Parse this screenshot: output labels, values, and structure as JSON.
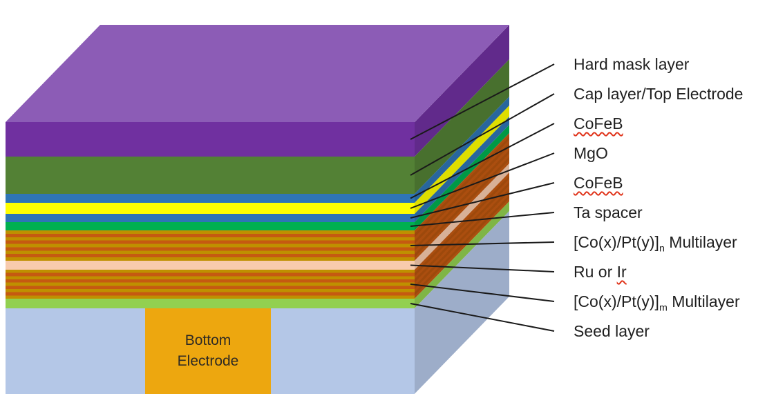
{
  "figure": {
    "background": "#FFFFFF",
    "label_text_color": "#1F1F1F",
    "leader_line_color": "#1A1A1A",
    "misspell_underline_color": "#E0341B",
    "top_face_color": "#8C5CB6"
  },
  "stack": {
    "layers": [
      {
        "name": "hard-mask-layer",
        "color": "#7030A0",
        "label": {
          "text": "Hard mask layer",
          "parts": [
            {
              "t": "Hard mask layer"
            }
          ]
        }
      },
      {
        "name": "cap-layer-top-electrode",
        "color": "#538135",
        "label": {
          "text": "Cap layer/Top Electrode",
          "parts": [
            {
              "t": "Cap layer/Top Electrode"
            }
          ]
        }
      },
      {
        "name": "cofeb-top",
        "color": "#2E75B6",
        "label": {
          "text": "CoFeB",
          "parts": [
            {
              "t": "CoFeB",
              "misspelled": true
            }
          ]
        }
      },
      {
        "name": "mgo",
        "color": "#FFFF00",
        "label": {
          "text": "MgO",
          "parts": [
            {
              "t": "MgO"
            }
          ]
        }
      },
      {
        "name": "cofeb-bottom",
        "color": "#2E75B6",
        "label": {
          "text": "CoFeB",
          "parts": [
            {
              "t": "CoFeB",
              "misspelled": true
            }
          ]
        }
      },
      {
        "name": "ta-spacer",
        "color": "#00B050",
        "label": {
          "text": "Ta spacer",
          "parts": [
            {
              "t": "Ta spacer"
            }
          ]
        }
      },
      {
        "name": "co-pt-multilayer-n",
        "striped": true,
        "colors": [
          "#BF9000",
          "#C55A11"
        ],
        "label": {
          "text": "[Co(x)/Pt(y)]n Multilayer",
          "parts": [
            {
              "t": "[Co(x)/Pt(y)]"
            },
            {
              "t": "n",
              "sub": true
            },
            {
              "t": " Multilayer"
            }
          ]
        }
      },
      {
        "name": "ru-or-ir",
        "color": "#F8CBAD",
        "label": {
          "text": "Ru or Ir",
          "parts": [
            {
              "t": "Ru or "
            },
            {
              "t": "Ir",
              "misspelled": true
            }
          ]
        }
      },
      {
        "name": "co-pt-multilayer-m",
        "striped": true,
        "colors": [
          "#BF9000",
          "#C55A11"
        ],
        "label": {
          "text": "[Co(x)/Pt(y)]m Multilayer",
          "parts": [
            {
              "t": "[Co(x)/Pt(y)]"
            },
            {
              "t": "m",
              "sub": true
            },
            {
              "t": " Multilayer"
            }
          ]
        }
      },
      {
        "name": "seed-layer",
        "color": "#92D050",
        "label": {
          "text": "Seed layer",
          "parts": [
            {
              "t": "Seed layer"
            }
          ]
        }
      },
      {
        "name": "substrate",
        "color": "#B4C7E7"
      }
    ],
    "bottom_electrode": {
      "label": "Bottom Electrode",
      "color": "#EDA70F",
      "text_color": "#2E2A24"
    }
  }
}
